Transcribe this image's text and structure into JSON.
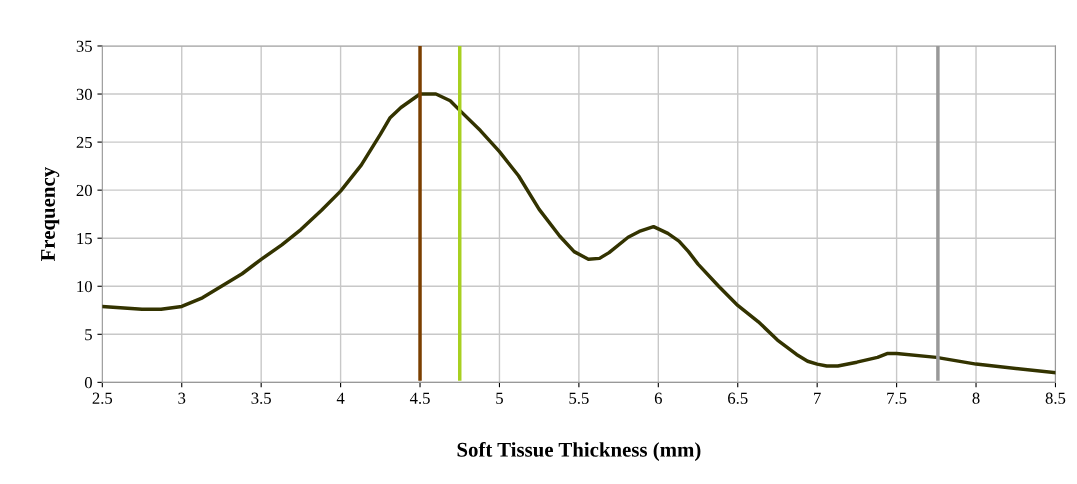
{
  "chart_data": {
    "type": "line",
    "xlabel": "Soft Tissue Thickness (mm)",
    "ylabel": "Frequency",
    "series": [
      {
        "color": "#333300",
        "x": [
          2.5,
          2.75,
          2.87,
          3.0,
          3.13,
          3.25,
          3.38,
          3.5,
          3.63,
          3.75,
          3.88,
          4.0,
          4.13,
          4.25,
          4.31,
          4.38,
          4.5,
          4.6,
          4.69,
          4.75,
          4.88,
          5.0,
          5.12,
          5.25,
          5.38,
          5.47,
          5.56,
          5.63,
          5.69,
          5.81,
          5.88,
          5.97,
          6.06,
          6.13,
          6.19,
          6.25,
          6.38,
          6.5,
          6.63,
          6.75,
          6.87,
          6.94,
          7.0,
          7.06,
          7.13,
          7.25,
          7.38,
          7.44,
          7.5,
          7.75,
          8.0,
          8.5
        ],
        "values": [
          7.9,
          7.6,
          7.6,
          7.9,
          8.8,
          10,
          11.3,
          12.8,
          14.3,
          15.9,
          17.9,
          19.9,
          22.6,
          25.8,
          27.5,
          28.6,
          30,
          30,
          29.3,
          28.3,
          26.2,
          24,
          21.5,
          18,
          15.2,
          13.6,
          12.8,
          12.9,
          13.5,
          15.1,
          15.7,
          16.2,
          15.5,
          14.7,
          13.6,
          12.3,
          10,
          8,
          6.3,
          4.4,
          2.9,
          2.2,
          1.9,
          1.7,
          1.7,
          2.1,
          2.6,
          3.0,
          3.0,
          2.6,
          1.9,
          1.0
        ]
      }
    ],
    "xlim": [
      2.5,
      8.5
    ],
    "xticks": [
      2.5,
      3,
      3.5,
      4,
      4.5,
      5,
      5.5,
      6,
      6.5,
      7,
      7.5,
      8,
      8.5
    ],
    "ylim": [
      0,
      35
    ],
    "yticks": [
      0,
      5,
      10,
      15,
      20,
      25,
      30,
      35
    ],
    "ref_lines": [
      {
        "axis": "x",
        "value": 4.5,
        "color": "#7b3f00"
      },
      {
        "axis": "x",
        "value": 4.75,
        "color": "#a8d020"
      },
      {
        "axis": "x",
        "value": 7.76,
        "color": "#999999"
      }
    ],
    "grid": true,
    "marker": "none",
    "line_style": "solid"
  }
}
